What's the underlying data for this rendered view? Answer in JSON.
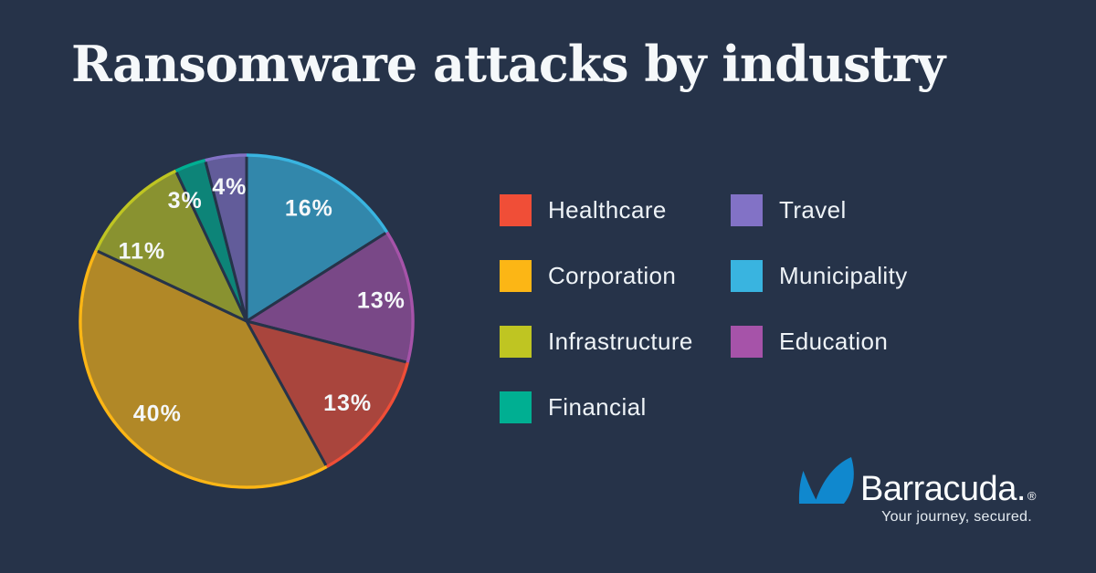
{
  "title": "Ransomware attacks by industry",
  "chart_data": {
    "type": "pie",
    "title": "Ransomware attacks by industry",
    "unit": "%",
    "start_angle": "12 o'clock",
    "direction": "clockwise",
    "slices": [
      {
        "label": "Municipality",
        "value": 16,
        "color": "#39b4e0"
      },
      {
        "label": "Education",
        "value": 13,
        "color": "#a653a9"
      },
      {
        "label": "Healthcare",
        "value": 13,
        "color": "#f04e37"
      },
      {
        "label": "Corporation",
        "value": 40,
        "color": "#fcb615"
      },
      {
        "label": "Infrastructure",
        "value": 11,
        "color": "#bfc522"
      },
      {
        "label": "Financial",
        "value": 3,
        "color": "#00af92"
      },
      {
        "label": "Travel",
        "value": 4,
        "color": "#8272c6"
      }
    ],
    "legend_position": "right",
    "legend_columns": [
      [
        "Healthcare",
        "Corporation",
        "Infrastructure",
        "Financial"
      ],
      [
        "Travel",
        "Municipality",
        "Education"
      ]
    ]
  },
  "branding": {
    "wordmark": "Barracuda.",
    "registered_mark": "®",
    "tagline": "Your journey, secured.",
    "logo_color": "#1088ce"
  },
  "colors": {
    "background": "#263349",
    "text": "#f4f7f9"
  }
}
